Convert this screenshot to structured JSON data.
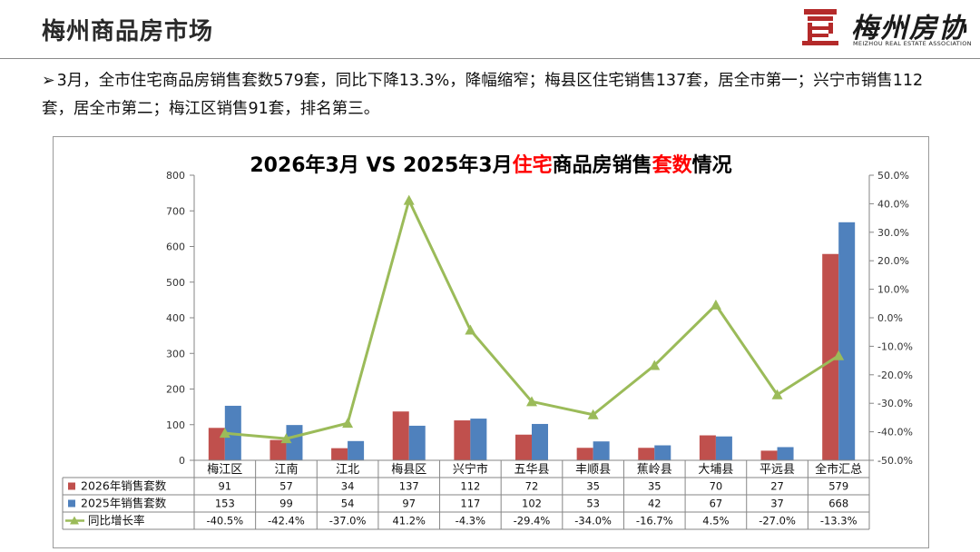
{
  "header": {
    "title": "梅州商品房市场",
    "logo_cn": "梅州房协",
    "logo_en": "MEIZHOU REAL ESTATE ASSOCIATION"
  },
  "summary": {
    "arrow": "➢",
    "text": "3月，全市住宅商品房销售套数579套，同比下降13.3%，降幅缩窄；梅县区住宅销售137套，居全市第一；兴宁市销售112套，居全市第二；梅江区销售91套，排名第三。"
  },
  "colors": {
    "series_2026": "#c0504d",
    "series_2025": "#4f81bd",
    "growth_line": "#9bbb59",
    "title_highlight": "#ff0000"
  },
  "chart_data": {
    "type": "bar",
    "title_parts": [
      {
        "text": "2026年3月 VS 2025年3月",
        "color": "#000000"
      },
      {
        "text": "住宅",
        "color": "#ff0000"
      },
      {
        "text": "商品房销售",
        "color": "#000000"
      },
      {
        "text": "套数",
        "color": "#ff0000"
      },
      {
        "text": "情况",
        "color": "#000000"
      }
    ],
    "categories": [
      "梅江区",
      "江南",
      "江北",
      "梅县区",
      "兴宁市",
      "五华县",
      "丰顺县",
      "蕉岭县",
      "大埔县",
      "平远县",
      "全市汇总"
    ],
    "series": [
      {
        "name": "2026年销售套数",
        "values": [
          91,
          57,
          34,
          137,
          112,
          72,
          35,
          35,
          70,
          27,
          579
        ]
      },
      {
        "name": "2025年销售套数",
        "values": [
          153,
          99,
          54,
          97,
          117,
          102,
          53,
          42,
          67,
          37,
          668
        ]
      }
    ],
    "line_series": {
      "name": "同比增长率",
      "values": [
        -40.5,
        -42.4,
        -37.0,
        41.2,
        -4.3,
        -29.4,
        -34.0,
        -16.7,
        4.5,
        -27.0,
        -13.3
      ],
      "labels": [
        "-40.5%",
        "-42.4%",
        "-37.0%",
        "41.2%",
        "-4.3%",
        "-29.4%",
        "-34.0%",
        "-16.7%",
        "4.5%",
        "-27.0%",
        "-13.3%"
      ]
    },
    "y_left": {
      "min": 0,
      "max": 800,
      "step": 100,
      "ticks": [
        "0",
        "100",
        "200",
        "300",
        "400",
        "500",
        "600",
        "700",
        "800"
      ]
    },
    "y_right": {
      "min": -50,
      "max": 50,
      "step": 10,
      "ticks": [
        "-50.0%",
        "-40.0%",
        "-30.0%",
        "-20.0%",
        "-10.0%",
        "0.0%",
        "10.0%",
        "20.0%",
        "30.0%",
        "40.0%",
        "50.0%"
      ]
    },
    "legend_placement": "data-table",
    "grid": false
  }
}
